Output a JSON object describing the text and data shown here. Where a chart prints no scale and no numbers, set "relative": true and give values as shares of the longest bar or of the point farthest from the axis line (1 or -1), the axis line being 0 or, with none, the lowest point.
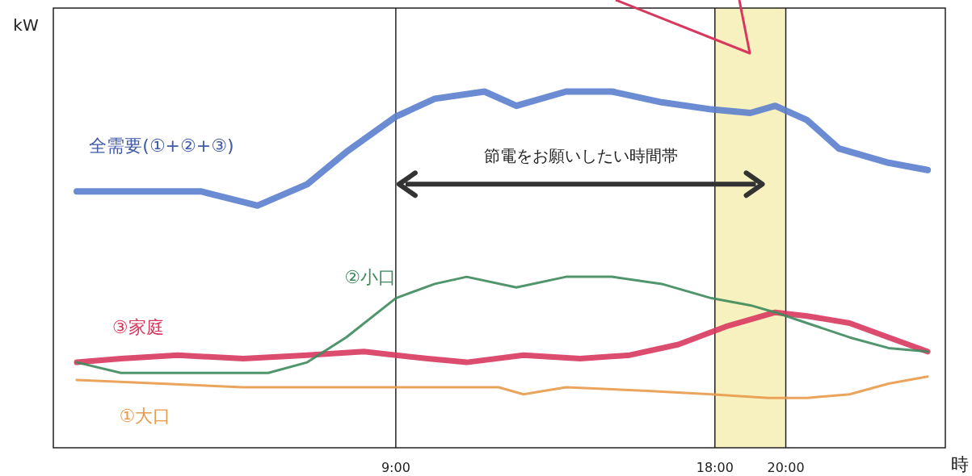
{
  "chart_data": {
    "type": "line",
    "relative": true,
    "ylabel": "kW",
    "xlabel": "時",
    "xlim": [
      -0.66,
      24.5
    ],
    "xticks": [
      {
        "value": 9,
        "label": "9:00"
      },
      {
        "value": 18,
        "label": "18:00"
      },
      {
        "value": 20,
        "label": "20:00"
      }
    ],
    "tick_labels": "x",
    "series": [
      {
        "name": "全需要(①+②+③)",
        "color": "#5b7fce",
        "x": [
          0,
          1.25,
          3.5,
          5.1,
          6.5,
          7.6,
          9,
          10.1,
          11.5,
          12.4,
          13.8,
          15.1,
          16.5,
          17.9,
          19,
          19.7,
          20.6,
          21.5,
          22.9,
          24
        ],
        "values": [
          0.72,
          0.72,
          0.72,
          0.68,
          0.74,
          0.83,
          0.93,
          0.98,
          1.0,
          0.96,
          1.0,
          1.0,
          0.97,
          0.95,
          0.94,
          0.96,
          0.92,
          0.84,
          0.8,
          0.78
        ]
      },
      {
        "name": "②小口",
        "color": "#3d8a5c",
        "x": [
          0,
          1.25,
          3.5,
          5.4,
          6.5,
          7.6,
          9,
          10.1,
          11,
          12.4,
          13.8,
          15.1,
          16.5,
          17.9,
          19,
          19.7,
          20.6,
          21.8,
          22.9,
          24
        ],
        "values": [
          0.24,
          0.21,
          0.21,
          0.21,
          0.24,
          0.31,
          0.42,
          0.46,
          0.48,
          0.45,
          0.48,
          0.48,
          0.46,
          0.42,
          0.4,
          0.38,
          0.35,
          0.31,
          0.28,
          0.27
        ]
      },
      {
        "name": "③家庭",
        "color": "#d8385e",
        "x": [
          0,
          1.25,
          2.85,
          4.7,
          6.5,
          8.1,
          9.9,
          11,
          12.6,
          14.2,
          15.6,
          16.97,
          18.3,
          19.7,
          20.6,
          21.8,
          22.9,
          24
        ],
        "values": [
          0.24,
          0.25,
          0.26,
          0.25,
          0.26,
          0.27,
          0.25,
          0.24,
          0.26,
          0.25,
          0.26,
          0.29,
          0.34,
          0.38,
          0.37,
          0.35,
          0.31,
          0.27
        ]
      },
      {
        "name": "①大口",
        "color": "#e89a4a",
        "x": [
          0,
          2.4,
          4.7,
          6.9,
          9,
          10.5,
          11.9,
          12.6,
          13.8,
          16.1,
          17.9,
          19.5,
          20.6,
          21.8,
          22.9,
          24
        ],
        "values": [
          0.19,
          0.18,
          0.17,
          0.17,
          0.17,
          0.17,
          0.17,
          0.15,
          0.17,
          0.16,
          0.15,
          0.14,
          0.14,
          0.15,
          0.18,
          0.2
        ]
      }
    ],
    "bands": [
      {
        "axis": "x",
        "from": 18,
        "to": 20,
        "color": "#f7f1bf"
      }
    ],
    "ref_lines": [
      {
        "axis": "x",
        "value": 9,
        "color": "#222222"
      },
      {
        "axis": "x",
        "value": 18,
        "color": "#222222"
      },
      {
        "axis": "x",
        "value": 20,
        "color": "#222222"
      }
    ],
    "annotations": [
      "節電をお願いしたい時間帯"
    ]
  }
}
